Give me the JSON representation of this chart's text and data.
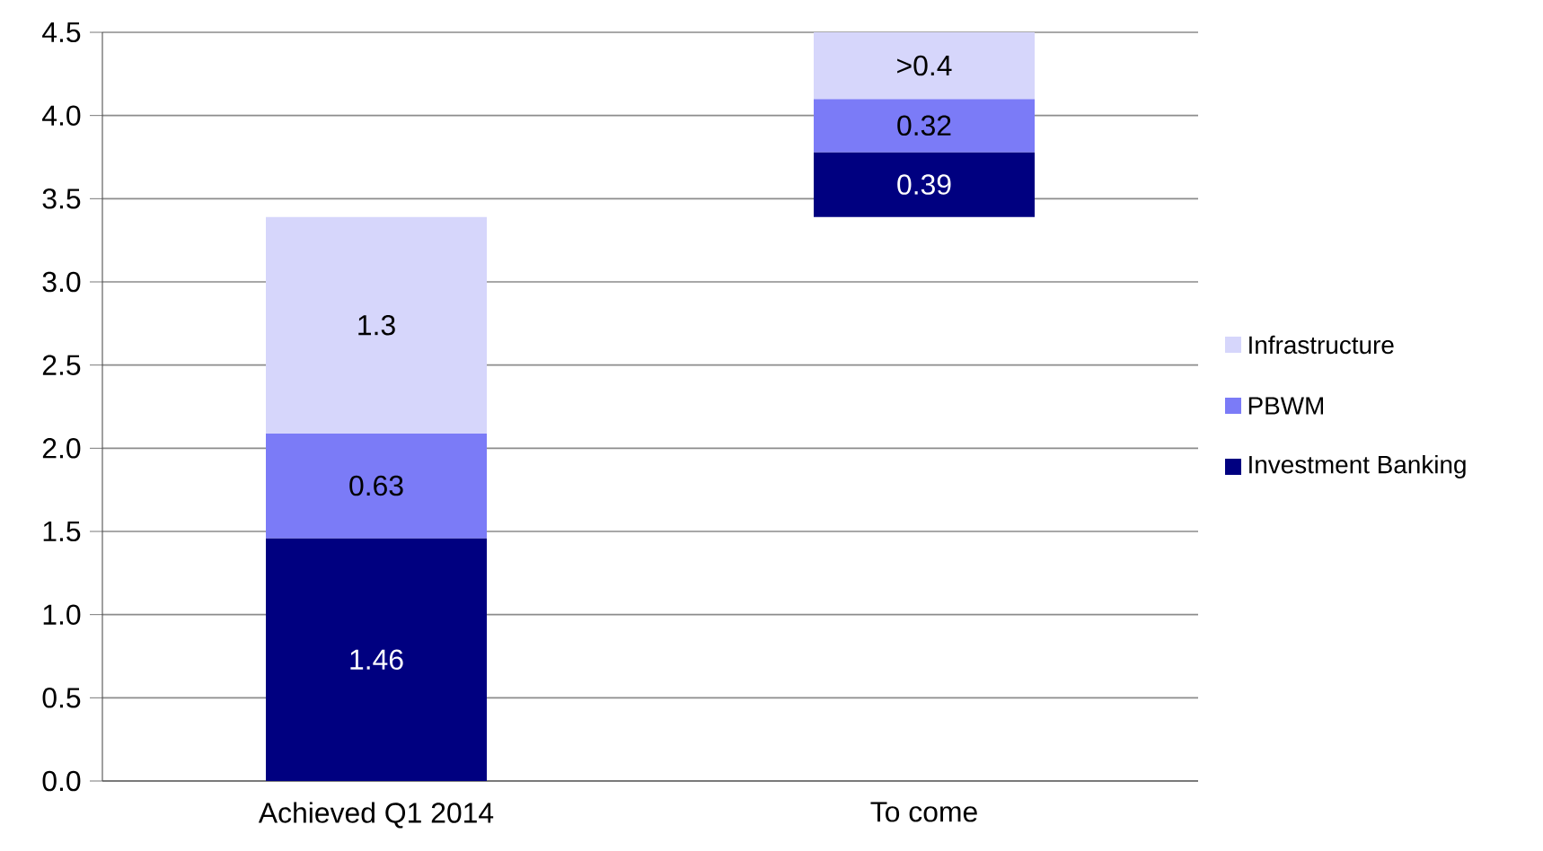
{
  "chart_data": {
    "type": "bar",
    "categories": [
      "Achieved Q1 2014",
      "To come"
    ],
    "series": [
      {
        "name": "Investment Banking",
        "color": "#000080",
        "base": [
          0,
          3.39
        ],
        "values": [
          1.46,
          0.39
        ],
        "value_labels": [
          "1.46",
          "0.39"
        ]
      },
      {
        "name": "PBWM",
        "color": "#7b7bf7",
        "base": [
          1.46,
          3.78
        ],
        "values": [
          0.63,
          0.32
        ],
        "value_labels": [
          "0.63",
          "0.32"
        ]
      },
      {
        "name": "Infrastructure",
        "color": "#d6d6fb",
        "base": [
          2.09,
          4.1
        ],
        "values": [
          1.3,
          0.4
        ],
        "value_labels": [
          "1.3",
          ">0.4"
        ]
      }
    ],
    "ylim": [
      0,
      4.5
    ],
    "yticks": [
      {
        "value": 0,
        "label": "0.0"
      },
      {
        "value": 0.5,
        "label": "0.5"
      },
      {
        "value": 1,
        "label": "1.0"
      },
      {
        "value": 1.5,
        "label": "1.5"
      },
      {
        "value": 2,
        "label": "2.0"
      },
      {
        "value": 2.5,
        "label": "2.5"
      },
      {
        "value": 3,
        "label": "3.0"
      },
      {
        "value": 3.5,
        "label": "3.5"
      },
      {
        "value": 4,
        "label": "4.0"
      },
      {
        "value": 4.5,
        "label": "4.5"
      }
    ],
    "grid": "y",
    "legend": "right"
  }
}
